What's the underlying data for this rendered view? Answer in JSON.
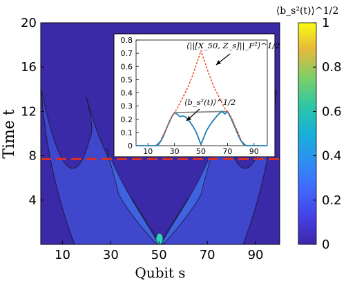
{
  "chart_data": [
    {
      "type": "heatmap",
      "xlabel": "Qubit s",
      "ylabel": "Time t",
      "xlim": [
        1,
        100
      ],
      "ylim": [
        0,
        20
      ],
      "xticks": [
        "10",
        "30",
        "50",
        "70",
        "90"
      ],
      "yticks": [
        "4",
        "8",
        "12",
        "16",
        "20"
      ],
      "colorbar": {
        "label": "⟨b_s²(t)⟩^1/2",
        "ticks": [
          "0",
          "0.2",
          "0.4",
          "0.6",
          "0.8",
          "1"
        ],
        "range": [
          0,
          1
        ]
      },
      "marker_line": {
        "y": 7.7,
        "style": "dashed",
        "color": "#d7302c"
      },
      "colors": {
        "low": "#3b2aa8",
        "lightcone_mid": "#3f57d6",
        "lightcone_high": "#3aa6e6",
        "center": "#2fd3bd"
      }
    },
    {
      "type": "line",
      "inset": true,
      "xlim": [
        1,
        100
      ],
      "ylim": [
        0,
        0.8
      ],
      "xticks": [
        "10",
        "30",
        "50",
        "70",
        "90"
      ],
      "yticks": [
        "0",
        "0.1",
        "0.2",
        "0.3",
        "0.4",
        "0.5",
        "0.6",
        "0.7",
        "0.8"
      ],
      "series": [
        {
          "name": "⟨b_s²(t)⟩^1/2",
          "color": "#1f7bb6",
          "style": "solid",
          "x": [
            1,
            10,
            16,
            18,
            20,
            22,
            24,
            26,
            28,
            30,
            32,
            34,
            36,
            38,
            40,
            42,
            44,
            46,
            48,
            49,
            50,
            51,
            52,
            54,
            56,
            58,
            60,
            62,
            64,
            66,
            68,
            70,
            72,
            74,
            76,
            78,
            80,
            82,
            84,
            100
          ],
          "values": [
            0.0,
            0.0,
            0.0,
            0.01,
            0.04,
            0.08,
            0.13,
            0.18,
            0.22,
            0.25,
            0.24,
            0.22,
            0.225,
            0.22,
            0.2,
            0.175,
            0.145,
            0.11,
            0.06,
            0.035,
            0.01,
            0.035,
            0.06,
            0.11,
            0.145,
            0.175,
            0.2,
            0.225,
            0.245,
            0.26,
            0.24,
            0.26,
            0.22,
            0.18,
            0.13,
            0.08,
            0.04,
            0.01,
            0.0,
            0.0
          ]
        },
        {
          "name": "⟨||[X_50, Z_s]||_F²⟩^1/2",
          "color": "#e8552a",
          "style": "dashed",
          "x": [
            20,
            22,
            24,
            26,
            28,
            30,
            32,
            34,
            36,
            38,
            40,
            42,
            44,
            46,
            48,
            50,
            52,
            54,
            56,
            58,
            60,
            62,
            64,
            66,
            68,
            70,
            72,
            74,
            76,
            78,
            80
          ],
          "values": [
            0.05,
            0.09,
            0.13,
            0.18,
            0.22,
            0.25,
            0.28,
            0.32,
            0.36,
            0.4,
            0.44,
            0.49,
            0.54,
            0.6,
            0.66,
            0.72,
            0.66,
            0.6,
            0.54,
            0.49,
            0.44,
            0.4,
            0.36,
            0.32,
            0.28,
            0.26,
            0.23,
            0.19,
            0.14,
            0.1,
            0.05
          ]
        },
        {
          "name": "grey envelope",
          "color": "#8c8c8c",
          "style": "solid",
          "x": [
            16,
            20,
            24,
            28,
            30,
            70,
            72,
            76,
            80,
            84
          ],
          "values": [
            0.0,
            0.04,
            0.13,
            0.22,
            0.25,
            0.26,
            0.22,
            0.13,
            0.04,
            0.0
          ]
        }
      ],
      "annotations": [
        {
          "text": "⟨||[X_50, Z_s]||_F²⟩^1/2"
        },
        {
          "text": "⟨b_s²(t)⟩^1/2"
        }
      ]
    }
  ]
}
